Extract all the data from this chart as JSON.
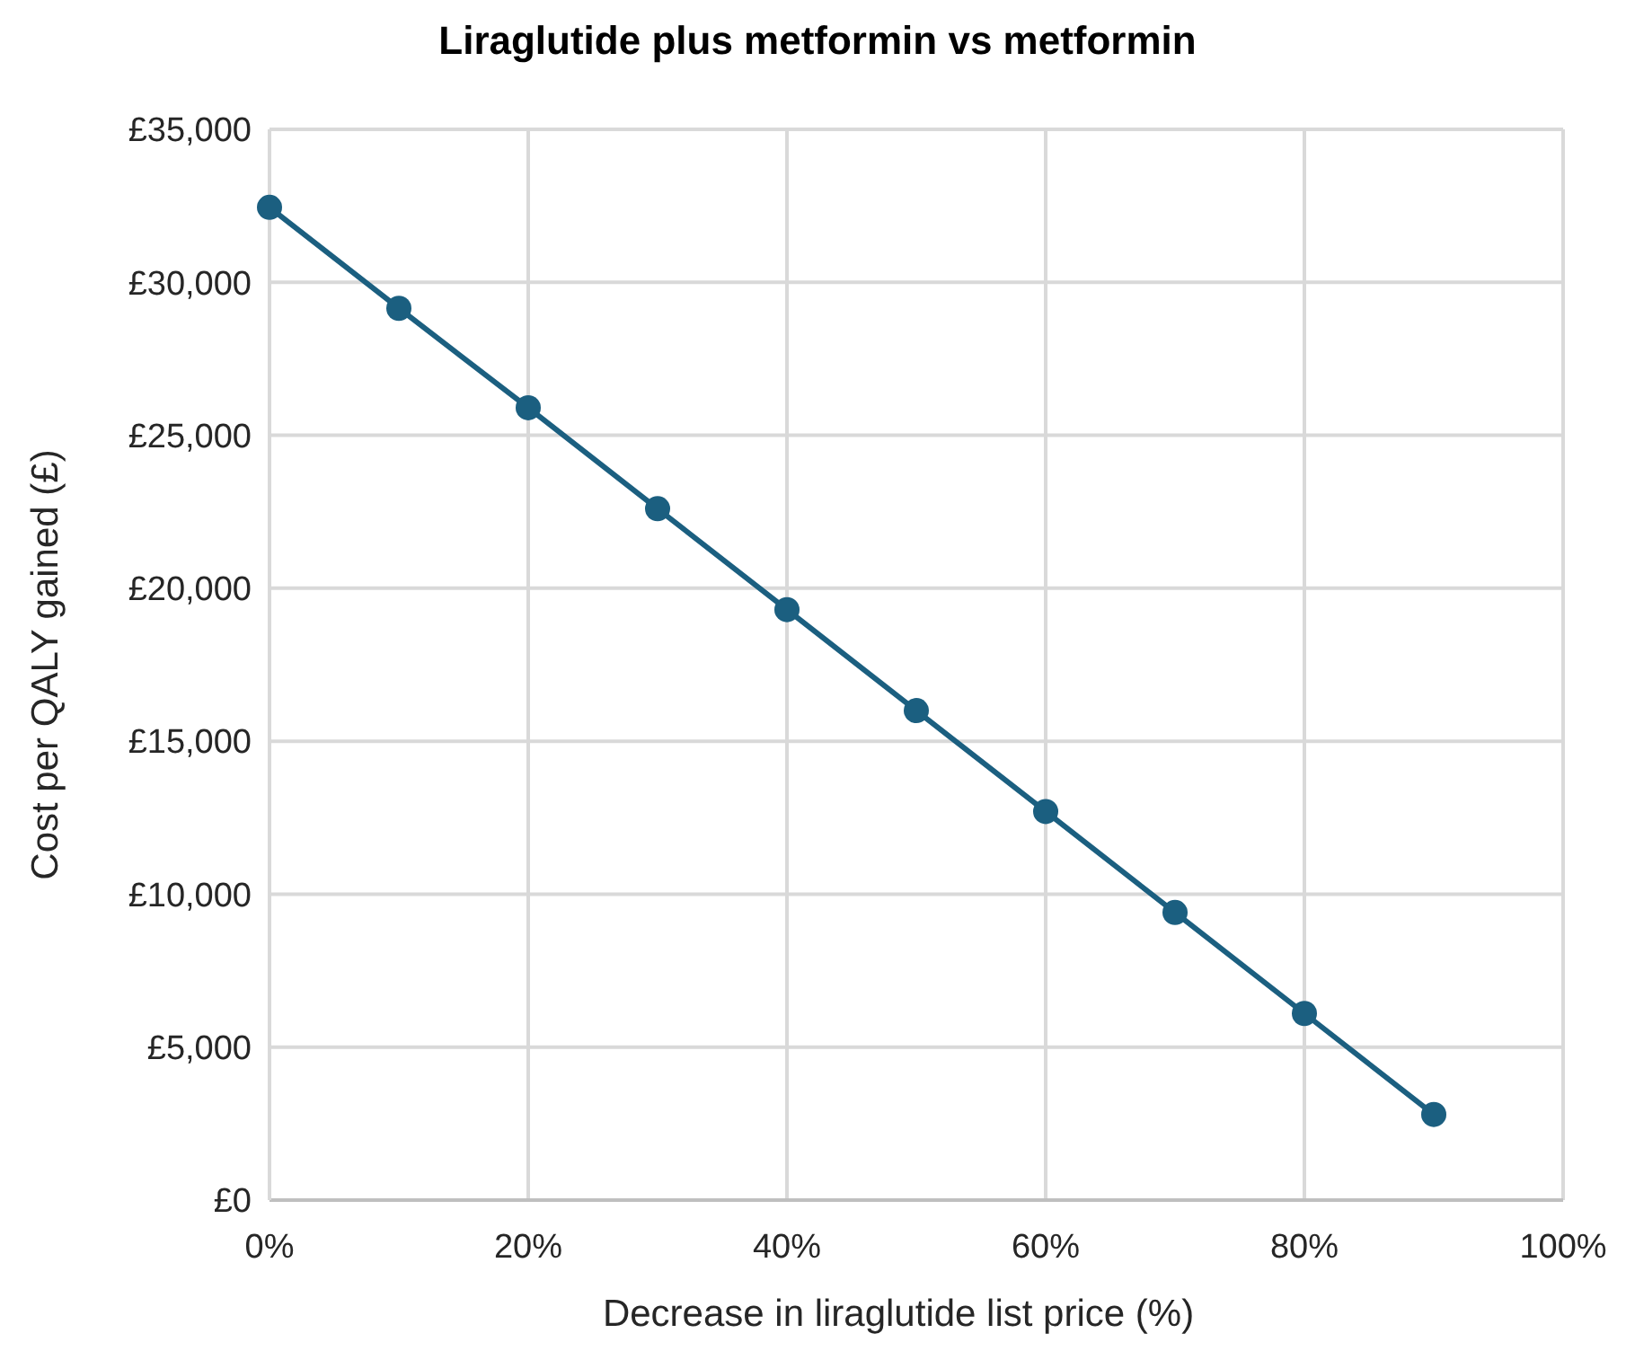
{
  "chart_data": {
    "type": "line",
    "title": "Liraglutide plus metformin vs metformin",
    "xlabel": "Decrease in liraglutide list price (%)",
    "ylabel": "Cost per QALY gained (£)",
    "x": [
      0,
      10,
      20,
      30,
      40,
      50,
      60,
      70,
      80,
      90
    ],
    "series": [
      {
        "color": "#1b5f80",
        "values": [
          32450,
          29150,
          25900,
          22600,
          19300,
          16000,
          12700,
          9400,
          6100,
          2800
        ]
      }
    ],
    "xlim": [
      0,
      100
    ],
    "xticks": [
      {
        "value": 0,
        "label": "0%"
      },
      {
        "value": 20,
        "label": "20%"
      },
      {
        "value": 40,
        "label": "40%"
      },
      {
        "value": 60,
        "label": "60%"
      },
      {
        "value": 80,
        "label": "80%"
      },
      {
        "value": 100,
        "label": "100%"
      }
    ],
    "ylim": [
      0,
      35000
    ],
    "yticks": [
      {
        "value": 0,
        "label": "£0"
      },
      {
        "value": 5000,
        "label": "£5,000"
      },
      {
        "value": 10000,
        "label": "£10,000"
      },
      {
        "value": 15000,
        "label": "£15,000"
      },
      {
        "value": 20000,
        "label": "£20,000"
      },
      {
        "value": 25000,
        "label": "£25,000"
      },
      {
        "value": 30000,
        "label": "£30,000"
      },
      {
        "value": 35000,
        "label": "£35,000"
      }
    ],
    "grid": true,
    "marker": "circle",
    "line_style": "solid"
  }
}
